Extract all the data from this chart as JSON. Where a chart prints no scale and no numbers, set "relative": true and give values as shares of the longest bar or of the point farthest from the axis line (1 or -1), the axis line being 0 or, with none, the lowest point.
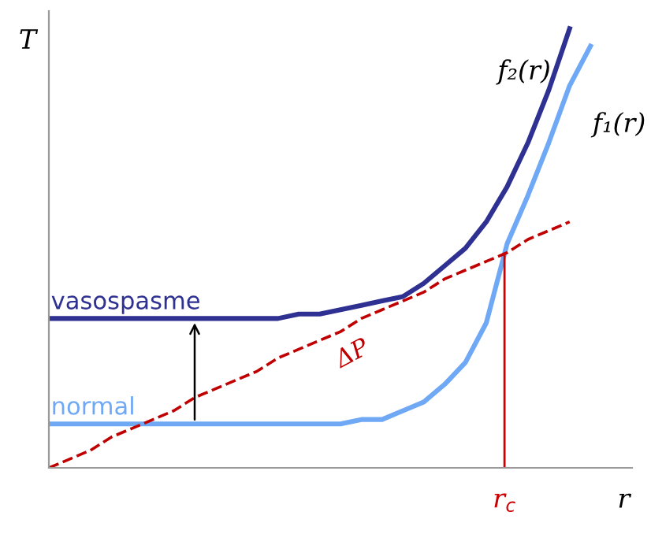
{
  "chart_data": {
    "type": "line",
    "relative": true,
    "ylabel": "T",
    "xlabel": "r",
    "categories": [
      null,
      null,
      null,
      null,
      null,
      null,
      null,
      null,
      null,
      null,
      null,
      null,
      null,
      null,
      null,
      null,
      null,
      null,
      null,
      null,
      null,
      null,
      null,
      null,
      null,
      null,
      null
    ],
    "series": [
      {
        "name": "vasospasme",
        "color": "#2e3192",
        "values": [
          0.34,
          0.34,
          0.34,
          0.34,
          0.34,
          0.34,
          0.34,
          0.34,
          0.34,
          0.34,
          0.34,
          0.34,
          0.35,
          0.35,
          0.36,
          0.37,
          0.38,
          0.39,
          0.42,
          0.46,
          0.5,
          0.56,
          0.64,
          0.74,
          0.86,
          1.0,
          null
        ]
      },
      {
        "name": "normal",
        "color": "#6fa8f5",
        "values": [
          0.1,
          0.1,
          0.1,
          0.1,
          0.1,
          0.1,
          0.1,
          0.1,
          0.1,
          0.1,
          0.1,
          0.1,
          0.1,
          0.1,
          0.1,
          0.11,
          0.11,
          0.13,
          0.15,
          0.19,
          0.24,
          0.33,
          0.51,
          0.62,
          0.74,
          0.87,
          0.96
        ]
      },
      {
        "name": "ΔP",
        "color": "#c00000",
        "line_style": "dashed",
        "values": [
          0.0,
          0.02,
          0.04,
          0.07,
          0.09,
          0.11,
          0.13,
          0.16,
          0.18,
          0.2,
          0.22,
          0.25,
          0.27,
          0.29,
          0.31,
          0.34,
          0.36,
          0.38,
          0.4,
          0.43,
          0.45,
          0.47,
          0.49,
          0.52,
          0.54,
          0.56,
          null
        ]
      }
    ],
    "annotations": [
      "f₂(r)",
      "f₁(r)",
      "r$_{c}$"
    ],
    "legend": false
  }
}
